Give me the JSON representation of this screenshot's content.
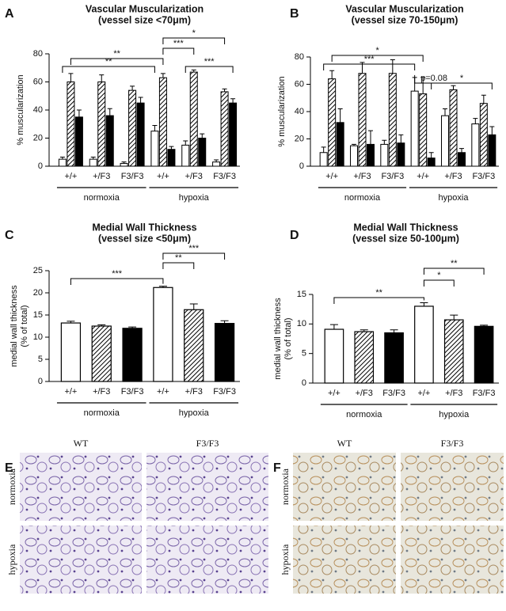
{
  "chart_data": [
    {
      "type": "grouped_bar",
      "panel": "A",
      "title": "Vascular Muscularization",
      "subtitle": "(vessel size <70μm)",
      "ylabel": "% muscularization",
      "categories": [
        "+/+",
        "+/F3",
        "F3/F3",
        "+/+",
        "+/F3",
        "F3/F3"
      ],
      "groups": [
        "normoxia",
        "hypoxia"
      ],
      "ylim": [
        0,
        80
      ],
      "yticks": [
        0,
        20,
        40,
        60,
        80
      ],
      "series": [
        {
          "color": "#ffffff",
          "hatched": false,
          "values": [
            5,
            5,
            2,
            25,
            15,
            3
          ],
          "errors": [
            1.5,
            1.5,
            1,
            4,
            3,
            1.5
          ]
        },
        {
          "color": "#ffffff",
          "hatched": true,
          "values": [
            60,
            60,
            54,
            63,
            67,
            53
          ],
          "errors": [
            6,
            5,
            3,
            3,
            1.5,
            2
          ]
        },
        {
          "color": "#000000",
          "hatched": false,
          "values": [
            35,
            36,
            45,
            12,
            20,
            45
          ],
          "errors": [
            5,
            5,
            4,
            2,
            3,
            3
          ]
        }
      ],
      "annotations": [
        "**",
        "**",
        "*",
        "***",
        "***"
      ]
    },
    {
      "type": "grouped_bar",
      "panel": "B",
      "title": "Vascular Muscularization",
      "subtitle": "(vessel size 70-150μm)",
      "ylabel": "% muscularization",
      "categories": [
        "+/+",
        "+/F3",
        "F3/F3",
        "+/+",
        "+/F3",
        "F3/F3"
      ],
      "groups": [
        "normoxia",
        "hypoxia"
      ],
      "ylim": [
        0,
        80
      ],
      "yticks": [
        0,
        20,
        40,
        60,
        80
      ],
      "series": [
        {
          "color": "#ffffff",
          "hatched": false,
          "values": [
            10,
            15,
            16,
            55,
            37,
            31
          ],
          "errors": [
            4,
            1,
            3,
            10,
            5,
            4
          ]
        },
        {
          "color": "#ffffff",
          "hatched": true,
          "values": [
            64,
            68,
            68,
            53,
            56,
            46
          ],
          "errors": [
            6,
            8,
            10,
            12,
            3,
            6
          ]
        },
        {
          "color": "#000000",
          "hatched": false,
          "values": [
            32,
            16,
            17,
            6,
            10,
            23
          ],
          "errors": [
            10,
            10,
            6,
            4,
            3,
            6
          ]
        }
      ],
      "annotations": [
        "*",
        "***",
        "p=0.08",
        "*"
      ]
    },
    {
      "type": "bar",
      "panel": "C",
      "title": "Medial Wall Thickness",
      "subtitle": "(vessel size <50μm)",
      "ylabel": [
        "medial wall thickness",
        "(% of total)"
      ],
      "categories": [
        "+/+",
        "+/F3",
        "F3/F3",
        "+/+",
        "+/F3",
        "F3/F3"
      ],
      "groups": [
        "normoxia",
        "hypoxia"
      ],
      "ylim": [
        0,
        25
      ],
      "yticks": [
        0,
        5,
        10,
        15,
        20,
        25
      ],
      "values": [
        13.2,
        12.5,
        12.0,
        21.2,
        16.2,
        13.1
      ],
      "errors": [
        0.4,
        0.3,
        0.3,
        0.3,
        1.3,
        0.6
      ],
      "colors": [
        "#ffffff",
        "#ffffff",
        "#000000",
        "#ffffff",
        "#ffffff",
        "#000000"
      ],
      "hatched": [
        false,
        true,
        false,
        false,
        true,
        false
      ],
      "annotations": [
        "***",
        "**",
        "***"
      ]
    },
    {
      "type": "bar",
      "panel": "D",
      "title": "Medial Wall Thickness",
      "subtitle": "(vessel size 50-100μm)",
      "ylabel": [
        "medial wall thickness",
        "(% of total)"
      ],
      "categories": [
        "+/+",
        "+/F3",
        "F3/F3",
        "+/+",
        "+/F3",
        "F3/F3"
      ],
      "groups": [
        "normoxia",
        "hypoxia"
      ],
      "ylim": [
        0,
        15
      ],
      "yticks": [
        0,
        5,
        10,
        15
      ],
      "values": [
        9.1,
        8.7,
        8.5,
        13.0,
        10.7,
        9.6
      ],
      "errors": [
        0.8,
        0.3,
        0.5,
        0.6,
        0.8,
        0.2
      ],
      "colors": [
        "#ffffff",
        "#ffffff",
        "#000000",
        "#ffffff",
        "#ffffff",
        "#000000"
      ],
      "hatched": [
        false,
        true,
        false,
        false,
        true,
        false
      ],
      "annotations": [
        "**",
        "*",
        "**"
      ]
    }
  ],
  "images": [
    {
      "panel": "E",
      "columns": [
        "WT",
        "F3/F3"
      ],
      "rows": [
        "normoxia",
        "hypoxia"
      ]
    },
    {
      "panel": "F",
      "columns": [
        "WT",
        "F3/F3"
      ],
      "rows": [
        "normoxia",
        "hypoxia"
      ]
    }
  ]
}
